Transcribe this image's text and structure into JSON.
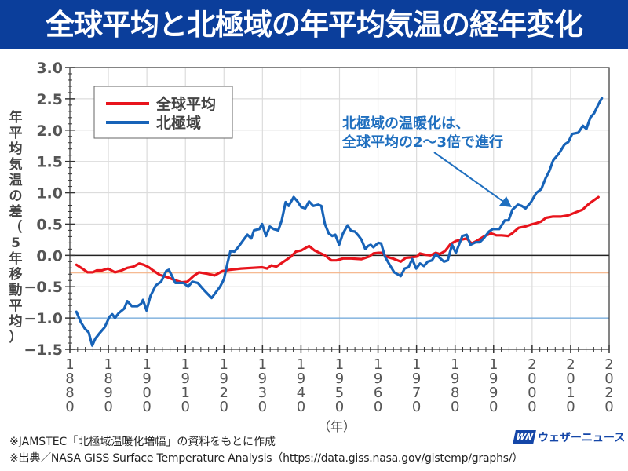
{
  "title": "全球平均と北極域の年平均気温の経年変化",
  "y_axis_label_chars": [
    "年",
    "平",
    "均",
    "気",
    "温",
    "の",
    "差",
    "（",
    "5",
    "年",
    "移",
    "動",
    "平",
    "均",
    "）"
  ],
  "x_unit_label": "（年）",
  "notes": [
    "※JAMSTEC「北極域温暖化増幅」の資料をもとに作成",
    "※出典／NASA GISS Surface Temperature Analysis（https://data.giss.nasa.gov/gistemp/graphs/）"
  ],
  "logo": {
    "mark": "WN",
    "text": "ウェザーニュース"
  },
  "chart_data": {
    "type": "line",
    "title": "全球平均と北極域の年平均気温の経年変化",
    "xlabel": "（年）",
    "ylabel": "年平均気温の差（5年移動平均）",
    "xlim": [
      1880,
      2020
    ],
    "ylim": [
      -1.5,
      3.0
    ],
    "x_ticks": [
      1880,
      1890,
      1900,
      1910,
      1920,
      1930,
      1940,
      1950,
      1960,
      1970,
      1980,
      1990,
      2000,
      2010,
      2020
    ],
    "y_ticks": [
      "3.0",
      "2.5",
      "2.0",
      "1.5",
      "1.0",
      "0.5",
      "0.0",
      "-0.5",
      "-1.0",
      "-1.5"
    ],
    "y_tick_values": [
      3.0,
      2.5,
      2.0,
      1.5,
      1.0,
      0.5,
      0.0,
      -0.5,
      -1.0,
      -1.5
    ],
    "grid": true,
    "legend": {
      "placement": "top-left",
      "entries": [
        "全球平均",
        "北極域"
      ]
    },
    "reference_lines": [
      {
        "value": -0.28,
        "color": "#f4b183"
      },
      {
        "value": -1.0,
        "color": "#6fa8dc"
      }
    ],
    "annotation": {
      "lines": [
        "北極域の温暖化は、",
        "全球平均の2〜3倍で進行"
      ],
      "color": "#1f6fbf"
    },
    "series": [
      {
        "name": "全球平均",
        "color": "#e8141c",
        "points": [
          [
            1881.7,
            -0.15
          ],
          [
            1883.2,
            -0.21
          ],
          [
            1884.6,
            -0.27
          ],
          [
            1885.9,
            -0.27
          ],
          [
            1887.0,
            -0.24
          ],
          [
            1888.3,
            -0.24
          ],
          [
            1889.9,
            -0.21
          ],
          [
            1891.7,
            -0.27
          ],
          [
            1893.4,
            -0.24
          ],
          [
            1894.9,
            -0.2
          ],
          [
            1896.5,
            -0.18
          ],
          [
            1898.0,
            -0.13
          ],
          [
            1899.2,
            -0.15
          ],
          [
            1900.5,
            -0.19
          ],
          [
            1901.6,
            -0.24
          ],
          [
            1903.3,
            -0.31
          ],
          [
            1905.4,
            -0.35
          ],
          [
            1907.4,
            -0.4
          ],
          [
            1909.1,
            -0.43
          ],
          [
            1910.5,
            -0.42
          ],
          [
            1912.1,
            -0.33
          ],
          [
            1913.5,
            -0.27
          ],
          [
            1915.5,
            -0.29
          ],
          [
            1917.6,
            -0.32
          ],
          [
            1919.6,
            -0.25
          ],
          [
            1921.6,
            -0.23
          ],
          [
            1924.4,
            -0.21
          ],
          [
            1927.1,
            -0.2
          ],
          [
            1929.9,
            -0.19
          ],
          [
            1931.2,
            -0.21
          ],
          [
            1932.3,
            -0.16
          ],
          [
            1933.6,
            -0.18
          ],
          [
            1936.0,
            -0.08
          ],
          [
            1937.4,
            -0.02
          ],
          [
            1938.7,
            0.06
          ],
          [
            1940.1,
            0.08
          ],
          [
            1942.1,
            0.15
          ],
          [
            1943.5,
            0.08
          ],
          [
            1944.8,
            0.04
          ],
          [
            1946.2,
            0.0
          ],
          [
            1947.9,
            -0.08
          ],
          [
            1949.2,
            -0.08
          ],
          [
            1950.9,
            -0.05
          ],
          [
            1953.0,
            -0.05
          ],
          [
            1955.7,
            -0.06
          ],
          [
            1957.7,
            -0.02
          ],
          [
            1958.8,
            0.03
          ],
          [
            1960.1,
            0.04
          ],
          [
            1961.1,
            0.04
          ],
          [
            1962.1,
            -0.02
          ],
          [
            1963.8,
            -0.05
          ],
          [
            1965.9,
            -0.1
          ],
          [
            1967.2,
            -0.04
          ],
          [
            1968.9,
            -0.03
          ],
          [
            1970.1,
            -0.02
          ],
          [
            1970.9,
            0.03
          ],
          [
            1972.3,
            0.01
          ],
          [
            1973.6,
            0.0
          ],
          [
            1975.0,
            0.04
          ],
          [
            1976.0,
            0.02
          ],
          [
            1977.4,
            0.07
          ],
          [
            1978.8,
            0.18
          ],
          [
            1980.2,
            0.23
          ],
          [
            1983.0,
            0.27
          ],
          [
            1984.3,
            0.19
          ],
          [
            1985.6,
            0.23
          ],
          [
            1987.7,
            0.31
          ],
          [
            1989.4,
            0.35
          ],
          [
            1990.7,
            0.32
          ],
          [
            1992.1,
            0.32
          ],
          [
            1993.8,
            0.31
          ],
          [
            1994.8,
            0.35
          ],
          [
            1996.5,
            0.44
          ],
          [
            1998.2,
            0.46
          ],
          [
            1999.6,
            0.49
          ],
          [
            2000.9,
            0.51
          ],
          [
            2002.3,
            0.54
          ],
          [
            2003.6,
            0.6
          ],
          [
            2005.3,
            0.62
          ],
          [
            2007.4,
            0.62
          ],
          [
            2009.4,
            0.64
          ],
          [
            2011.4,
            0.69
          ],
          [
            2013.1,
            0.73
          ],
          [
            2014.5,
            0.81
          ],
          [
            2015.8,
            0.87
          ],
          [
            2017.2,
            0.93
          ]
        ]
      },
      {
        "name": "北極域",
        "color": "#1763b8",
        "points": [
          [
            1881.7,
            -0.9
          ],
          [
            1882.8,
            -1.06
          ],
          [
            1883.9,
            -1.17
          ],
          [
            1884.9,
            -1.23
          ],
          [
            1885.8,
            -1.44
          ],
          [
            1886.6,
            -1.33
          ],
          [
            1887.6,
            -1.25
          ],
          [
            1889.0,
            -1.15
          ],
          [
            1890.3,
            -0.98
          ],
          [
            1891.0,
            -0.94
          ],
          [
            1891.7,
            -1.0
          ],
          [
            1892.7,
            -0.92
          ],
          [
            1894.1,
            -0.85
          ],
          [
            1894.9,
            -0.73
          ],
          [
            1896.1,
            -0.81
          ],
          [
            1897.5,
            -0.81
          ],
          [
            1898.5,
            -0.77
          ],
          [
            1899.0,
            -0.71
          ],
          [
            1899.9,
            -0.88
          ],
          [
            1900.9,
            -0.65
          ],
          [
            1902.3,
            -0.48
          ],
          [
            1903.7,
            -0.42
          ],
          [
            1905.0,
            -0.25
          ],
          [
            1905.7,
            -0.23
          ],
          [
            1907.4,
            -0.44
          ],
          [
            1909.5,
            -0.44
          ],
          [
            1910.7,
            -0.5
          ],
          [
            1911.8,
            -0.42
          ],
          [
            1913.2,
            -0.44
          ],
          [
            1914.9,
            -0.56
          ],
          [
            1916.8,
            -0.68
          ],
          [
            1918.98,
            -0.5
          ],
          [
            1920.0,
            -0.38
          ],
          [
            1921.0,
            -0.1
          ],
          [
            1921.7,
            0.07
          ],
          [
            1922.7,
            0.06
          ],
          [
            1923.7,
            0.13
          ],
          [
            1925.1,
            0.25
          ],
          [
            1926.1,
            0.33
          ],
          [
            1927.1,
            0.27
          ],
          [
            1927.8,
            0.4
          ],
          [
            1929.2,
            0.42
          ],
          [
            1929.9,
            0.5
          ],
          [
            1930.9,
            0.31
          ],
          [
            1931.9,
            0.46
          ],
          [
            1932.9,
            0.42
          ],
          [
            1934.1,
            0.4
          ],
          [
            1935.0,
            0.56
          ],
          [
            1936.0,
            0.85
          ],
          [
            1936.8,
            0.79
          ],
          [
            1938.1,
            0.93
          ],
          [
            1939.1,
            0.86
          ],
          [
            1940.1,
            0.77
          ],
          [
            1941.1,
            0.75
          ],
          [
            1942.1,
            0.86
          ],
          [
            1943.2,
            0.79
          ],
          [
            1944.5,
            0.81
          ],
          [
            1945.3,
            0.79
          ],
          [
            1946.2,
            0.5
          ],
          [
            1947.2,
            0.35
          ],
          [
            1948.1,
            0.31
          ],
          [
            1948.9,
            0.33
          ],
          [
            1949.9,
            0.17
          ],
          [
            1950.9,
            0.35
          ],
          [
            1952.1,
            0.48
          ],
          [
            1953.0,
            0.39
          ],
          [
            1954.0,
            0.38
          ],
          [
            1955.0,
            0.31
          ],
          [
            1955.7,
            0.25
          ],
          [
            1956.7,
            0.1
          ],
          [
            1957.4,
            0.15
          ],
          [
            1958.1,
            0.17
          ],
          [
            1958.8,
            0.13
          ],
          [
            1959.5,
            0.17
          ],
          [
            1960.1,
            0.2
          ],
          [
            1960.8,
            0.19
          ],
          [
            1961.8,
            -0.02
          ],
          [
            1963.2,
            -0.17
          ],
          [
            1964.2,
            -0.27
          ],
          [
            1965.9,
            -0.33
          ],
          [
            1966.9,
            -0.21
          ],
          [
            1967.9,
            -0.19
          ],
          [
            1968.9,
            -0.06
          ],
          [
            1969.9,
            -0.21
          ],
          [
            1970.9,
            -0.13
          ],
          [
            1971.9,
            -0.17
          ],
          [
            1972.9,
            -0.1
          ],
          [
            1974.0,
            -0.08
          ],
          [
            1975.0,
            0.02
          ],
          [
            1976.0,
            -0.04
          ],
          [
            1977.1,
            -0.1
          ],
          [
            1978.1,
            -0.08
          ],
          [
            1979.2,
            0.17
          ],
          [
            1980.2,
            0.04
          ],
          [
            1981.9,
            0.31
          ],
          [
            1983.0,
            0.33
          ],
          [
            1984.0,
            0.17
          ],
          [
            1985.4,
            0.21
          ],
          [
            1986.4,
            0.21
          ],
          [
            1987.4,
            0.27
          ],
          [
            1988.8,
            0.38
          ],
          [
            1989.8,
            0.42
          ],
          [
            1991.5,
            0.42
          ],
          [
            1992.9,
            0.56
          ],
          [
            1993.9,
            0.56
          ],
          [
            1994.9,
            0.73
          ],
          [
            1996.3,
            0.81
          ],
          [
            1997.3,
            0.79
          ],
          [
            1998.3,
            0.75
          ],
          [
            1999.7,
            0.85
          ],
          [
            2001.1,
            1.0
          ],
          [
            2002.4,
            1.06
          ],
          [
            2003.5,
            1.23
          ],
          [
            2004.5,
            1.35
          ],
          [
            2005.5,
            1.52
          ],
          [
            2007.0,
            1.63
          ],
          [
            2008.4,
            1.77
          ],
          [
            2009.4,
            1.81
          ],
          [
            2010.4,
            1.94
          ],
          [
            2012.0,
            1.96
          ],
          [
            2013.2,
            2.07
          ],
          [
            2014.1,
            2.02
          ],
          [
            2015.1,
            2.2
          ],
          [
            2016.1,
            2.27
          ],
          [
            2017.1,
            2.4
          ],
          [
            2018.1,
            2.51
          ]
        ]
      }
    ]
  }
}
